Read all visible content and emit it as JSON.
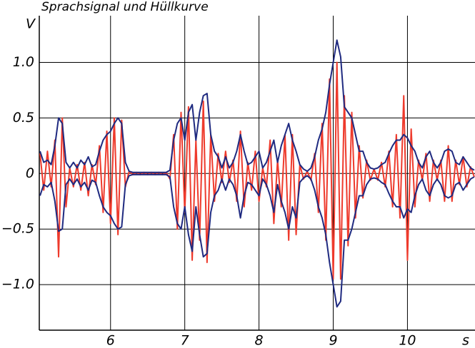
{
  "chart_data": {
    "type": "line",
    "title": "Sprachsignal und Hüllkurve",
    "y_label": "V",
    "x_label": "s",
    "xlim": [
      5.04,
      10.91
    ],
    "ylim": [
      -1.41,
      1.42
    ],
    "xticks": [
      6,
      7,
      8,
      9,
      10
    ],
    "yticks": [
      {
        "value": 1.0,
        "label": "1.0"
      },
      {
        "value": 0.5,
        "label": "0.5"
      },
      0,
      {
        "value": -0.5,
        "label": "−0.5"
      },
      {
        "value": -1.0,
        "label": "−1.0"
      }
    ],
    "grid": true,
    "x": [
      5.05,
      5.1,
      5.15,
      5.2,
      5.25,
      5.3,
      5.35,
      5.4,
      5.45,
      5.5,
      5.55,
      5.6,
      5.65,
      5.7,
      5.75,
      5.8,
      5.85,
      5.9,
      5.95,
      6.0,
      6.05,
      6.1,
      6.15,
      6.2,
      6.25,
      6.3,
      6.35,
      6.4,
      6.45,
      6.5,
      6.55,
      6.6,
      6.65,
      6.7,
      6.75,
      6.8,
      6.85,
      6.9,
      6.95,
      7.0,
      7.05,
      7.1,
      7.15,
      7.2,
      7.25,
      7.3,
      7.35,
      7.4,
      7.45,
      7.5,
      7.55,
      7.6,
      7.65,
      7.7,
      7.75,
      7.8,
      7.85,
      7.9,
      7.95,
      8.0,
      8.05,
      8.1,
      8.15,
      8.2,
      8.25,
      8.3,
      8.35,
      8.4,
      8.45,
      8.5,
      8.55,
      8.6,
      8.65,
      8.7,
      8.75,
      8.8,
      8.85,
      8.9,
      8.95,
      9.0,
      9.05,
      9.1,
      9.15,
      9.2,
      9.25,
      9.3,
      9.35,
      9.4,
      9.45,
      9.5,
      9.55,
      9.6,
      9.65,
      9.7,
      9.75,
      9.8,
      9.85,
      9.9,
      9.95,
      10.0,
      10.05,
      10.1,
      10.15,
      10.2,
      10.25,
      10.3,
      10.35,
      10.4,
      10.45,
      10.5,
      10.55,
      10.6,
      10.65,
      10.7,
      10.75,
      10.8,
      10.85,
      10.9
    ],
    "series": [
      {
        "color": "#ee3a2c",
        "width": 2,
        "values": [
          0.18,
          -0.15,
          0.2,
          -0.12,
          0.3,
          -0.75,
          0.5,
          -0.3,
          0.05,
          -0.12,
          0.08,
          -0.15,
          0.1,
          -0.2,
          0.08,
          -0.1,
          0.25,
          -0.35,
          0.38,
          -0.45,
          0.5,
          -0.55,
          0.48,
          -0.12,
          0.02,
          -0.01,
          0.01,
          -0.01,
          0.01,
          -0.01,
          0.01,
          -0.01,
          0.01,
          -0.01,
          0.01,
          -0.05,
          0.35,
          -0.5,
          0.55,
          -0.35,
          0.6,
          -0.78,
          0.3,
          -0.6,
          0.65,
          -0.8,
          0.35,
          -0.25,
          0.18,
          -0.08,
          0.2,
          -0.08,
          0.12,
          -0.25,
          0.38,
          -0.3,
          0.1,
          -0.15,
          0.2,
          -0.25,
          0.05,
          -0.12,
          0.3,
          -0.45,
          0.12,
          -0.3,
          0.35,
          -0.6,
          0.35,
          -0.55,
          0.08,
          -0.05,
          0.02,
          -0.06,
          0.18,
          -0.35,
          0.45,
          -0.6,
          0.85,
          -0.95,
          1.0,
          -0.95,
          0.7,
          -0.65,
          0.55,
          -0.4,
          0.25,
          -0.22,
          0.12,
          -0.06,
          0.04,
          -0.06,
          0.1,
          -0.12,
          0.2,
          -0.3,
          0.35,
          -0.4,
          0.7,
          -0.78,
          0.4,
          -0.3,
          0.12,
          -0.06,
          0.18,
          -0.25,
          0.12,
          -0.06,
          0.12,
          -0.25,
          0.25,
          -0.25,
          0.12,
          -0.1,
          0.15,
          -0.12,
          0.06,
          -0.03
        ]
      },
      {
        "color": "#1f2a80",
        "width": 2,
        "values": [
          0.2,
          0.1,
          0.12,
          0.08,
          0.25,
          0.5,
          0.45,
          0.1,
          0.05,
          0.1,
          0.05,
          0.12,
          0.08,
          0.15,
          0.06,
          0.08,
          0.2,
          0.3,
          0.35,
          0.38,
          0.45,
          0.5,
          0.45,
          0.1,
          0.02,
          0.01,
          0.01,
          0.01,
          0.01,
          0.01,
          0.01,
          0.01,
          0.01,
          0.01,
          0.01,
          0.03,
          0.3,
          0.45,
          0.5,
          0.3,
          0.55,
          0.62,
          0.3,
          0.55,
          0.7,
          0.72,
          0.35,
          0.2,
          0.15,
          0.05,
          0.15,
          0.05,
          0.1,
          0.2,
          0.35,
          0.2,
          0.08,
          0.1,
          0.15,
          0.2,
          0.05,
          0.1,
          0.2,
          0.3,
          0.1,
          0.25,
          0.35,
          0.45,
          0.3,
          0.2,
          0.08,
          0.04,
          0.02,
          0.05,
          0.15,
          0.3,
          0.4,
          0.55,
          0.8,
          1.0,
          1.2,
          1.05,
          0.6,
          0.55,
          0.5,
          0.35,
          0.2,
          0.2,
          0.1,
          0.05,
          0.04,
          0.05,
          0.08,
          0.1,
          0.18,
          0.25,
          0.3,
          0.3,
          0.35,
          0.32,
          0.25,
          0.2,
          0.1,
          0.05,
          0.15,
          0.2,
          0.1,
          0.05,
          0.1,
          0.2,
          0.22,
          0.2,
          0.1,
          0.08,
          0.15,
          0.1,
          0.05,
          0.03
        ]
      },
      {
        "color": "#1f2a80",
        "width": 2,
        "values": [
          -0.2,
          -0.1,
          -0.12,
          -0.08,
          -0.25,
          -0.52,
          -0.5,
          -0.1,
          -0.05,
          -0.1,
          -0.05,
          -0.12,
          -0.08,
          -0.15,
          -0.06,
          -0.08,
          -0.2,
          -0.3,
          -0.35,
          -0.38,
          -0.45,
          -0.5,
          -0.48,
          -0.1,
          -0.02,
          -0.01,
          -0.01,
          -0.01,
          -0.01,
          -0.01,
          -0.01,
          -0.01,
          -0.01,
          -0.01,
          -0.01,
          -0.03,
          -0.3,
          -0.45,
          -0.5,
          -0.3,
          -0.55,
          -0.7,
          -0.3,
          -0.55,
          -0.75,
          -0.72,
          -0.35,
          -0.2,
          -0.15,
          -0.05,
          -0.15,
          -0.05,
          -0.1,
          -0.2,
          -0.4,
          -0.2,
          -0.08,
          -0.1,
          -0.15,
          -0.2,
          -0.05,
          -0.1,
          -0.2,
          -0.35,
          -0.1,
          -0.25,
          -0.35,
          -0.5,
          -0.3,
          -0.4,
          -0.08,
          -0.04,
          -0.02,
          -0.05,
          -0.15,
          -0.3,
          -0.4,
          -0.55,
          -0.8,
          -1.0,
          -1.2,
          -1.15,
          -0.6,
          -0.6,
          -0.5,
          -0.35,
          -0.2,
          -0.2,
          -0.1,
          -0.05,
          -0.04,
          -0.05,
          -0.08,
          -0.1,
          -0.18,
          -0.25,
          -0.3,
          -0.3,
          -0.4,
          -0.32,
          -0.35,
          -0.2,
          -0.1,
          -0.05,
          -0.15,
          -0.2,
          -0.1,
          -0.05,
          -0.1,
          -0.2,
          -0.22,
          -0.2,
          -0.1,
          -0.08,
          -0.15,
          -0.1,
          -0.05,
          -0.03
        ]
      }
    ]
  }
}
